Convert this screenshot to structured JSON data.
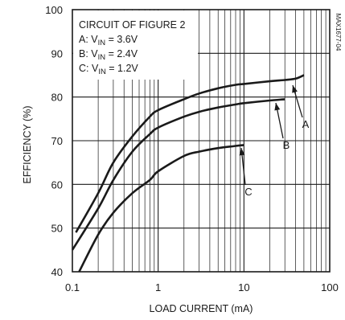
{
  "chart_data": {
    "type": "line",
    "xscale": "log",
    "xlabel": "LOAD CURRENT (mA)",
    "ylabel": "EFFICIENCY (%)",
    "xlim": [
      0.1,
      100
    ],
    "ylim": [
      40,
      100
    ],
    "x_ticks": [
      "0.1",
      "1",
      "10",
      "100"
    ],
    "y_ticks": [
      "40",
      "50",
      "60",
      "70",
      "80",
      "90",
      "100"
    ],
    "grid": true,
    "legend": {
      "title": "CIRCUIT OF FIGURE 2",
      "entries": [
        {
          "letter": "A",
          "prefix": "A: V",
          "sub": "IN",
          "value": " = 3.6V"
        },
        {
          "letter": "B",
          "prefix": "B: V",
          "sub": "IN",
          "value": " = 2.4V"
        },
        {
          "letter": "C",
          "prefix": "C: V",
          "sub": "IN",
          "value": " = 1.2V"
        }
      ],
      "placement": "top-left"
    },
    "figure_code": "MAX1677-04",
    "series": [
      {
        "name": "A",
        "x": [
          0.11,
          0.2,
          0.3,
          0.5,
          0.8,
          1,
          2,
          3,
          5,
          8,
          10,
          20,
          30,
          40,
          50
        ],
        "y": [
          49,
          58,
          65,
          71,
          75.5,
          77,
          79.5,
          80.8,
          82,
          82.8,
          83,
          83.6,
          83.9,
          84.2,
          85
        ]
      },
      {
        "name": "B",
        "x": [
          0.1,
          0.2,
          0.3,
          0.5,
          0.8,
          1,
          2,
          3,
          5,
          8,
          10,
          20,
          30
        ],
        "y": [
          45,
          54.5,
          61,
          67.5,
          71.5,
          73,
          75.5,
          76.6,
          77.6,
          78.3,
          78.6,
          79.2,
          79.5
        ]
      },
      {
        "name": "C",
        "x": [
          0.12,
          0.2,
          0.3,
          0.5,
          0.8,
          1,
          2,
          3,
          5,
          8,
          10
        ],
        "y": [
          40,
          48.5,
          53.5,
          58,
          61,
          63,
          66.5,
          67.5,
          68.3,
          68.8,
          69
        ]
      }
    ],
    "annotations": [
      "A",
      "B",
      "C"
    ]
  }
}
